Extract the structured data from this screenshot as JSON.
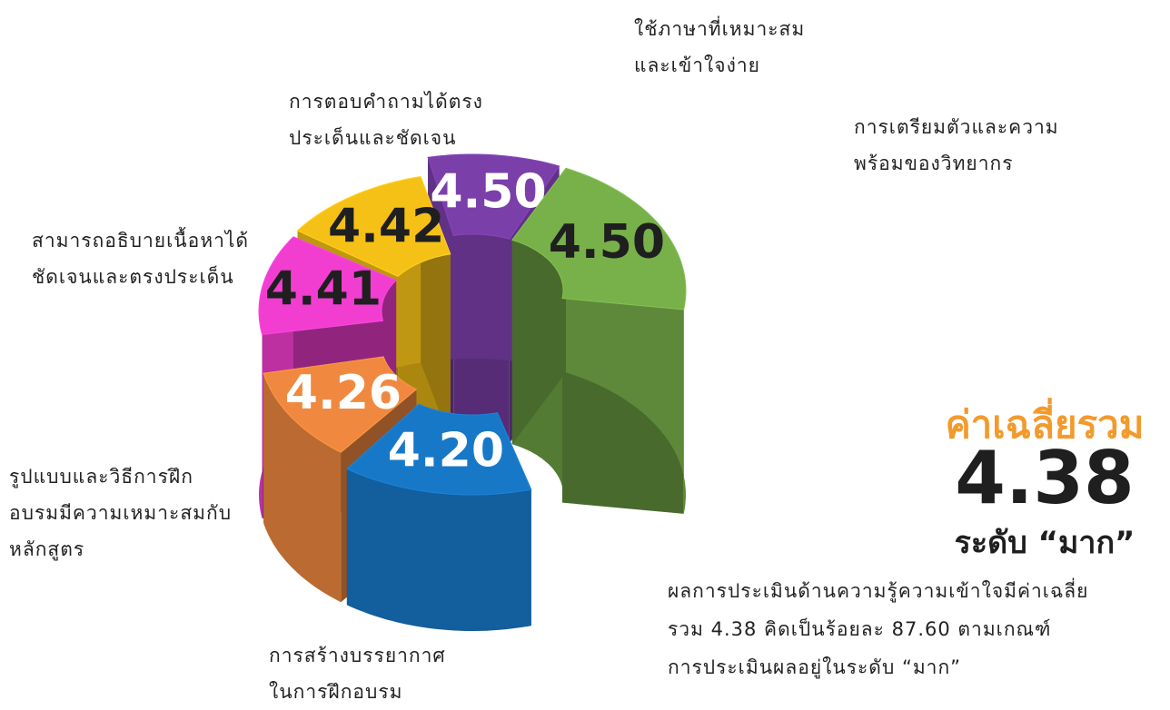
{
  "chart_data": {
    "type": "donut3d",
    "categories": [
      "ใช้ภาษาที่เหมาะสม\nและเข้าใจง่าย",
      "การเตรียมตัวและความ\nพร้อมของวิทยากร",
      "การตอบคำถามได้ตรง\nประเด็นและชัดเจน",
      "สามารถอธิบายเนื้อหาได้\nชัดเจนและตรงประเด็น",
      "รูปแบบและวิธีการฝึก\nอบรมมีความเหมาะสมกับ\nหลักสูตร",
      "การสร้างบรรยากาศ\nในการฝึกอบรม"
    ],
    "values": [
      4.5,
      4.5,
      4.42,
      4.41,
      4.26,
      4.2
    ],
    "value_labels": [
      "4.50",
      "4.50",
      "4.42",
      "4.41",
      "4.26",
      "4.20"
    ],
    "colors": [
      "#7b3fa9",
      "#78b04a",
      "#f6c117",
      "#f23ed0",
      "#f0893f",
      "#1878c8"
    ],
    "value_label_colors": [
      "#ffffff",
      "#1f1f1f",
      "#1f1f1f",
      "#1f1f1f",
      "#ffffff",
      "#ffffff"
    ],
    "summary": {
      "title": "ค่าเฉลี่ยรวม",
      "value": "4.38",
      "level": "ระดับ “มาก”",
      "description": "ผลการประเมินด้านความรู้ความเข้าใจมีค่าเฉลี่ย\nรวม 4.38 คิดเป็นร้อยละ 87.60 ตามเกณฑ์\nการประเมินผลอยู่ในระดับ “มาก”"
    }
  }
}
